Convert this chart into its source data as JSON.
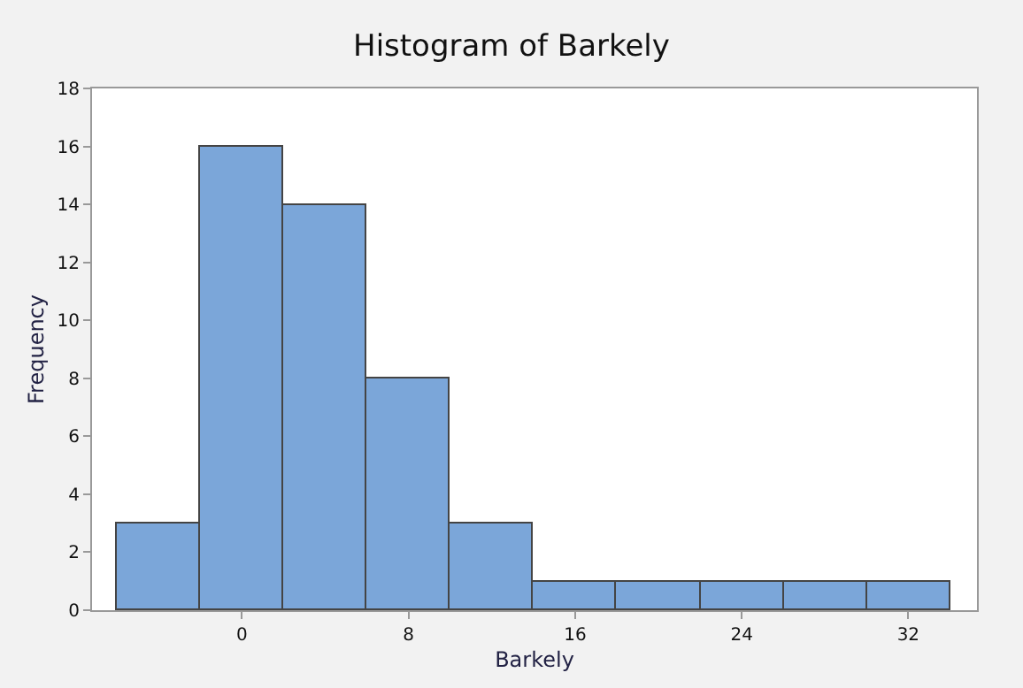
{
  "chart_data": {
    "type": "histogram",
    "title": "Histogram of Barkely",
    "xlabel": "Barkely",
    "ylabel": "Frequency",
    "bins": [
      -6,
      -2,
      2,
      6,
      10,
      14,
      18,
      22,
      26,
      30,
      34
    ],
    "values": [
      3,
      16,
      14,
      8,
      3,
      1,
      1,
      1,
      1,
      1
    ],
    "color": "#7ba6d9",
    "xlim": [
      -7.2,
      35.3
    ],
    "xticks": [
      0,
      8,
      16,
      24,
      32
    ],
    "ylim": [
      0,
      18
    ],
    "yticks": [
      0,
      2,
      4,
      6,
      8,
      10,
      12,
      14,
      16,
      18
    ]
  }
}
